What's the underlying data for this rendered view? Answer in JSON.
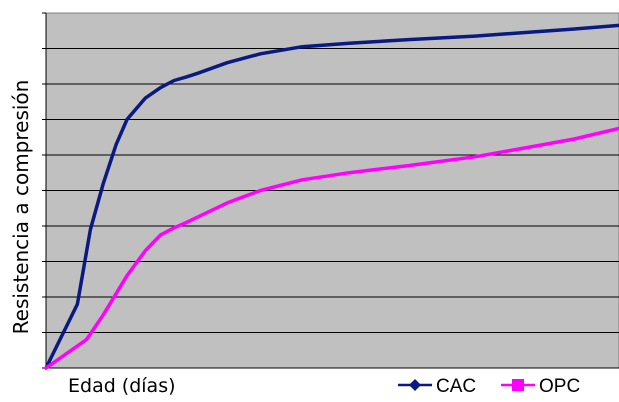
{
  "chart_data": {
    "type": "line",
    "title": "",
    "xlabel": "Edad (días)",
    "ylabel": "Resistencia a compresión",
    "xlim": [
      0,
      100
    ],
    "ylim": [
      0,
      10
    ],
    "grid": true,
    "legend_position": "bottom-right",
    "plot_background": "#c0c0c0",
    "series": [
      {
        "name": "CAC",
        "color": "#0a1a80",
        "marker": "diamond",
        "x": [
          0,
          0.3,
          0.6,
          1,
          1.5,
          2,
          3,
          4,
          5,
          6,
          7,
          10,
          14,
          20,
          28,
          40,
          56,
          70,
          85,
          100
        ],
        "y": [
          0,
          1.8,
          3.9,
          5.2,
          6.3,
          7.0,
          7.6,
          7.9,
          8.1,
          8.2,
          8.3,
          8.6,
          8.85,
          9.05,
          9.15,
          9.25,
          9.35,
          9.45,
          9.55,
          9.65
        ]
      },
      {
        "name": "OPC",
        "color": "#ff00ff",
        "marker": "square",
        "x": [
          0,
          0.5,
          1,
          2,
          3,
          4,
          5,
          6,
          7,
          10,
          14,
          20,
          28,
          40,
          56,
          70,
          85,
          100
        ],
        "y": [
          0,
          0.8,
          1.5,
          2.6,
          3.3,
          3.75,
          3.95,
          4.1,
          4.25,
          4.65,
          5.0,
          5.3,
          5.5,
          5.7,
          5.95,
          6.2,
          6.45,
          6.75
        ]
      }
    ]
  }
}
